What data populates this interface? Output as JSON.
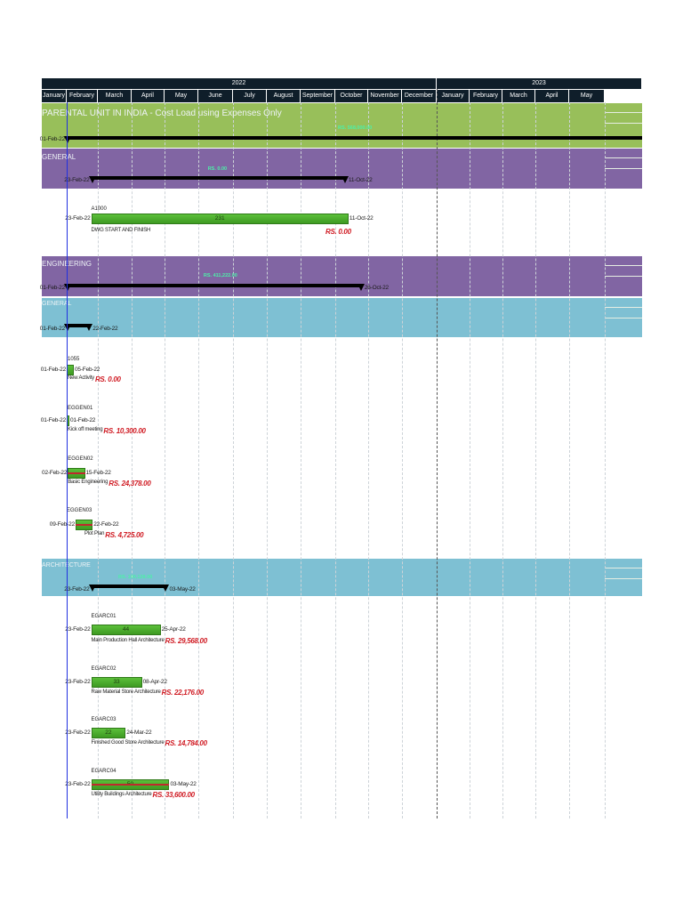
{
  "timeline": {
    "years": [
      {
        "label": "2022",
        "months": 12
      },
      {
        "label": "2023",
        "months": 5
      }
    ],
    "months": [
      "January",
      "February",
      "March",
      "April",
      "May",
      "June",
      "July",
      "August",
      "September",
      "October",
      "November",
      "December",
      "January",
      "February",
      "March",
      "April",
      "May"
    ]
  },
  "colors": {
    "header": "#0f1e2a",
    "project_band": "#98bf5a",
    "wbs_purple": "#8165a3",
    "wbs_blue": "#7ec0d3",
    "activity_bar": "#4fae2e",
    "critical": "#c0282d",
    "cost_text": "#d01c24",
    "summary_cost": "#4cf0a8",
    "data_date": "#2030e0"
  },
  "chart_data": {
    "type": "gantt",
    "title": "PARENTAL UNIT IN INDIA - Cost Load using Expenses Only",
    "rows": [
      {
        "kind": "band",
        "level": "project",
        "title": "PARENTAL UNIT IN INDIA - Cost Load using Expenses Only",
        "start": "01-Feb-22",
        "finish": "",
        "cost": ""
      },
      {
        "kind": "band",
        "level": "wbs",
        "title": "GENERAL",
        "start": "23-Feb-22",
        "finish": "11-Oct-22",
        "cost": "RS. 0.00"
      },
      {
        "kind": "activity",
        "id": "A1000",
        "name": "DWG START AND FINISH",
        "start": "23-Feb-22",
        "finish": "11-Oct-22",
        "duration": "231",
        "cost": "RS. 0.00",
        "critical": false
      },
      {
        "kind": "band",
        "level": "wbs",
        "title": "ENGINEERING",
        "start": "01-Feb-22",
        "finish": "26-Oct-22",
        "cost": "RS. 411,222.00"
      },
      {
        "kind": "band",
        "level": "sub",
        "title": "GENERAL",
        "start": "01-Feb-22",
        "finish": "22-Feb-22",
        "cost": ""
      },
      {
        "kind": "activity",
        "id": "1055",
        "name": "New Activity",
        "start": "01-Feb-22",
        "finish": "05-Feb-22",
        "duration": "",
        "cost": "RS. 0.00",
        "critical": false
      },
      {
        "kind": "activity",
        "id": "EGGEN01",
        "name": "Kick off meeting",
        "start": "01-Feb-22",
        "finish": "01-Feb-22",
        "duration": "",
        "cost": "RS. 10,300.00",
        "critical": false
      },
      {
        "kind": "activity",
        "id": "EGGEN02",
        "name": "Basic Engineering",
        "start": "02-Feb-22",
        "finish": "15-Feb-22",
        "duration": "",
        "cost": "RS. 24,378.00",
        "critical": true
      },
      {
        "kind": "activity",
        "id": "EGGEN03",
        "name": "Plot Plan",
        "start": "09-Feb-22",
        "finish": "22-Feb-22",
        "duration": "",
        "cost": "RS. 4,725.00",
        "critical": true
      },
      {
        "kind": "band",
        "level": "sub",
        "title": "ARCHITECTURE",
        "start": "23-Feb-22",
        "finish": "03-May-22",
        "cost": "RS. 100,128.00"
      },
      {
        "kind": "activity",
        "id": "EGARC01",
        "name": "Main Production Hall Architecture",
        "start": "23-Feb-22",
        "finish": "25-Apr-22",
        "duration": "44",
        "cost": "RS. 29,568.00",
        "critical": false
      },
      {
        "kind": "activity",
        "id": "EGARC02",
        "name": "Raw Material Store Architecture",
        "start": "23-Feb-22",
        "finish": "08-Apr-22",
        "duration": "33",
        "cost": "RS. 22,176.00",
        "critical": false
      },
      {
        "kind": "activity",
        "id": "EGARC03",
        "name": "Finished Good Store Architecture",
        "start": "23-Feb-22",
        "finish": "24-Mar-22",
        "duration": "22",
        "cost": "RS. 14,784.00",
        "critical": false
      },
      {
        "kind": "activity",
        "id": "EGARC04",
        "name": "Utility Buildings Architecture",
        "start": "23-Feb-22",
        "finish": "03-May-22",
        "duration": "50",
        "cost": "RS. 33,600.00",
        "critical": true
      }
    ],
    "project_cost": "RS. 568,000.00",
    "data_date": "01-Feb-22"
  }
}
